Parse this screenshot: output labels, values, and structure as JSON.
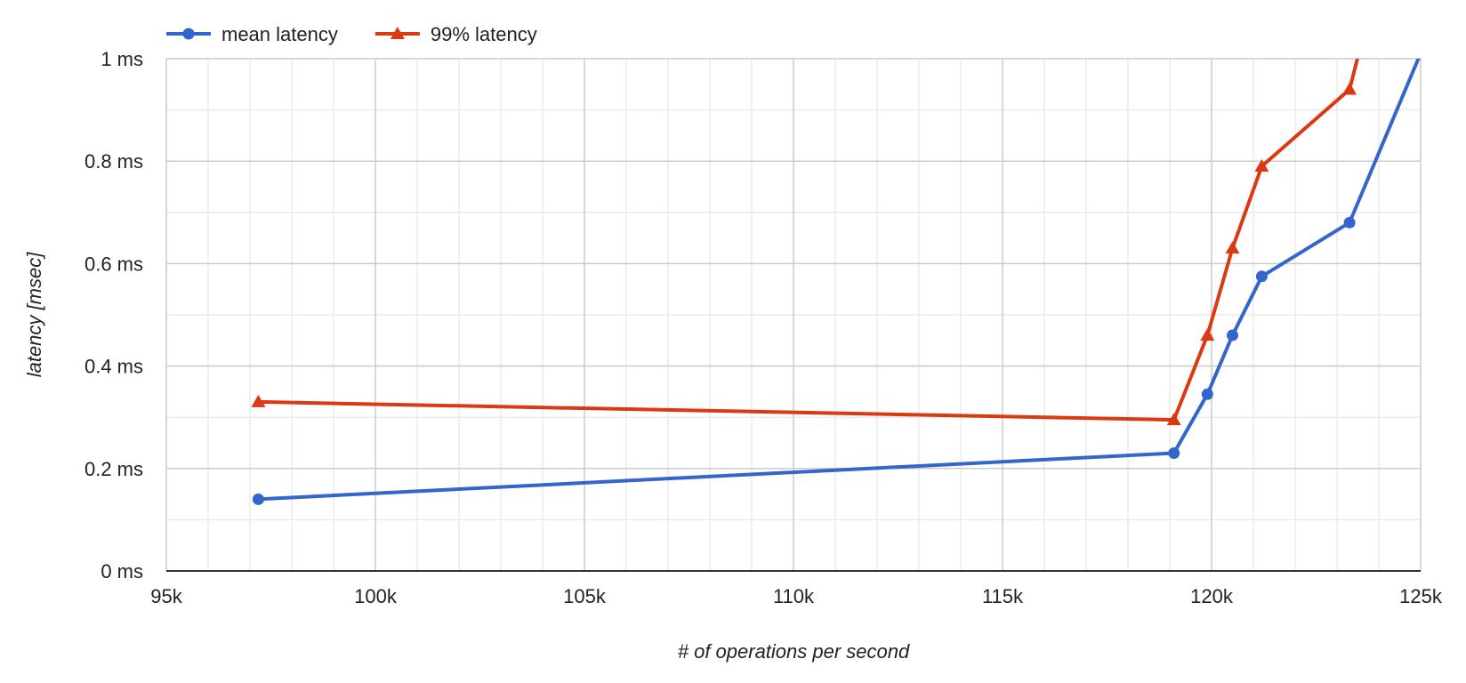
{
  "chart_data": {
    "type": "line",
    "title": "",
    "xlabel": "# of operations per second",
    "ylabel": "latency [msec]",
    "xlim": [
      95000,
      125000
    ],
    "ylim": [
      0,
      1
    ],
    "x_ticks": [
      {
        "value": 95000,
        "label": "95k"
      },
      {
        "value": 100000,
        "label": "100k"
      },
      {
        "value": 105000,
        "label": "105k"
      },
      {
        "value": 110000,
        "label": "110k"
      },
      {
        "value": 115000,
        "label": "115k"
      },
      {
        "value": 120000,
        "label": "120k"
      },
      {
        "value": 125000,
        "label": "125k"
      }
    ],
    "y_ticks": [
      {
        "value": 0,
        "label": "0 ms"
      },
      {
        "value": 0.2,
        "label": "0.2 ms"
      },
      {
        "value": 0.4,
        "label": "0.4 ms"
      },
      {
        "value": 0.6,
        "label": "0.6 ms"
      },
      {
        "value": 0.8,
        "label": "0.8 ms"
      },
      {
        "value": 1,
        "label": "1 ms"
      }
    ],
    "grid": true,
    "minor_grid": true,
    "legend": "top-left",
    "series": [
      {
        "name": "mean latency",
        "color": "#3366cc",
        "marker": "circle",
        "points": [
          {
            "x": 97200,
            "y": 0.14
          },
          {
            "x": 119100,
            "y": 0.23
          },
          {
            "x": 119900,
            "y": 0.345
          },
          {
            "x": 120500,
            "y": 0.46
          },
          {
            "x": 121200,
            "y": 0.575
          },
          {
            "x": 123300,
            "y": 0.68
          },
          {
            "x": 125100,
            "y": 1.03
          }
        ]
      },
      {
        "name": "99% latency",
        "color": "#dc3912",
        "marker": "triangle",
        "points": [
          {
            "x": 97200,
            "y": 0.33
          },
          {
            "x": 119100,
            "y": 0.295
          },
          {
            "x": 119900,
            "y": 0.46
          },
          {
            "x": 120500,
            "y": 0.63
          },
          {
            "x": 121200,
            "y": 0.79
          },
          {
            "x": 123300,
            "y": 0.94
          },
          {
            "x": 123800,
            "y": 1.1
          }
        ]
      }
    ]
  }
}
